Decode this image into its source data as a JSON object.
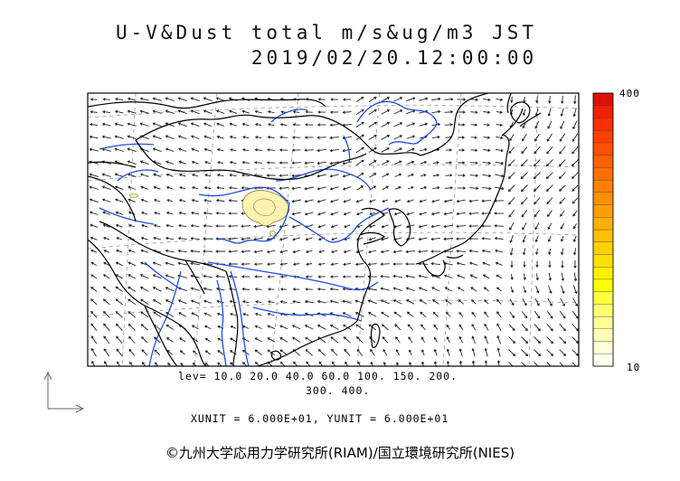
{
  "title": {
    "line1": "U-V&Dust total m/s&ug/m3 JST",
    "line2": "2019/02/20.12:00:00"
  },
  "levels": {
    "line1": "lev= 10.0 20.0 40.0 60.0 100. 150. 200.",
    "line2": "300. 400."
  },
  "units_text": "XUNIT = 6.000E+01, YUNIT = 6.000E+01",
  "colorbar": {
    "max_label": "400",
    "min_label": "10",
    "colors": [
      "#fffff0",
      "#ffffd8",
      "#ffffb8",
      "#ffff98",
      "#ffff70",
      "#ffff40",
      "#ffff00",
      "#fff000",
      "#ffe000",
      "#ffd000",
      "#ffc000",
      "#ffb000",
      "#ffa000",
      "#ff9000",
      "#ff8000",
      "#ff7000",
      "#ff6000",
      "#ff5000",
      "#ff4000",
      "#ff3000",
      "#f02000",
      "#e01000"
    ]
  },
  "copyright": "©九州大学応用力学研究所(RIAM)/国立環境研究所(NIES)",
  "colors": {
    "coast": "#000000",
    "rivers": "#1f4fe0",
    "dust_fill": "#fcf4b0",
    "grid": "#888888"
  },
  "icons": {
    "reference_vector": "reference-vector-icon"
  }
}
